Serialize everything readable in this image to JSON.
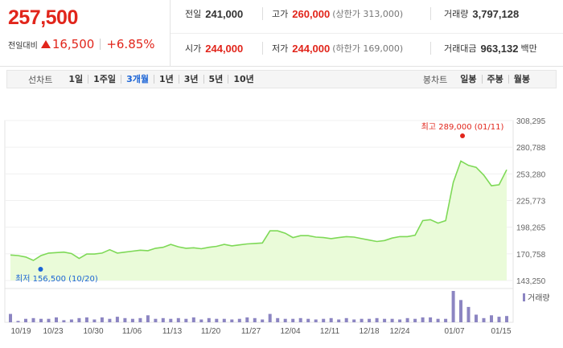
{
  "header": {
    "price": "257,500",
    "change_label": "전일대비",
    "change_amount": "16,500",
    "change_percent": "+6.85%"
  },
  "info": {
    "prev_close_label": "전일",
    "prev_close": "241,000",
    "high_label": "고가",
    "high": "260,000",
    "upper_limit": "(상한가 313,000)",
    "volume_label": "거래량",
    "volume": "3,797,128",
    "open_label": "시가",
    "open": "244,000",
    "low_label": "저가",
    "low": "244,000",
    "lower_limit": "(하한가 169,000)",
    "amount_label": "거래대금",
    "amount": "963,132",
    "amount_unit": "백만"
  },
  "toolbar": {
    "line_chart_label": "선차트",
    "periods": [
      "1일",
      "1주일",
      "3개월",
      "1년",
      "3년",
      "5년",
      "10년"
    ],
    "active_period": "3개월",
    "candle_chart_label": "봉차트",
    "candle_periods": [
      "일봉",
      "주봉",
      "월봉"
    ]
  },
  "colors": {
    "red": "#e1251b",
    "blue": "#1b64d6",
    "line": "#7ed957",
    "area": "#eafbd9",
    "volume_bar": "#8c85c2"
  },
  "chart_data": {
    "type": "area",
    "price_axis_ticks": [
      "308,295",
      "280,788",
      "253,280",
      "225,773",
      "198,265",
      "170,758",
      "143,250"
    ],
    "price_axis_range": [
      143250,
      308295
    ],
    "date_labels": [
      "10/19",
      "10/23",
      "10/30",
      "11/06",
      "11/13",
      "11/20",
      "11/27",
      "12/04",
      "12/11",
      "12/18",
      "12/24",
      "01/07",
      "01/15"
    ],
    "max_annotation": {
      "text": "최고 289,000 (01/11)",
      "value": 289000
    },
    "min_annotation": {
      "text": "최저 156,500 (10/20)",
      "value": 156500
    },
    "volume_label": "거래량",
    "prices": [
      169500,
      169000,
      167500,
      164000,
      169000,
      171500,
      172000,
      172500,
      171000,
      166000,
      170500,
      170500,
      171500,
      175000,
      171500,
      172500,
      173500,
      174500,
      174000,
      176500,
      177500,
      180500,
      178000,
      176500,
      177000,
      176000,
      177500,
      178500,
      180500,
      179000,
      180000,
      181000,
      181500,
      182000,
      194500,
      194500,
      192000,
      187500,
      189500,
      189500,
      188000,
      187500,
      186500,
      187500,
      188500,
      188000,
      186500,
      185000,
      183500,
      184500,
      187000,
      188500,
      188500,
      190000,
      205000,
      206000,
      202500,
      205000,
      244500,
      266500,
      262000,
      260000,
      252000,
      241000,
      242000,
      257500
    ],
    "volumes": [
      12,
      2,
      5,
      6,
      5,
      5,
      7,
      3,
      4,
      6,
      7,
      4,
      7,
      5,
      8,
      6,
      5,
      6,
      10,
      5,
      6,
      5,
      6,
      5,
      7,
      4,
      6,
      5,
      5,
      4,
      5,
      7,
      6,
      4,
      12,
      6,
      5,
      5,
      6,
      5,
      4,
      5,
      6,
      4,
      6,
      4,
      5,
      5,
      6,
      5,
      5,
      4,
      6,
      5,
      7,
      7,
      5,
      5,
      45,
      32,
      22,
      11,
      6,
      10,
      8,
      9
    ]
  }
}
